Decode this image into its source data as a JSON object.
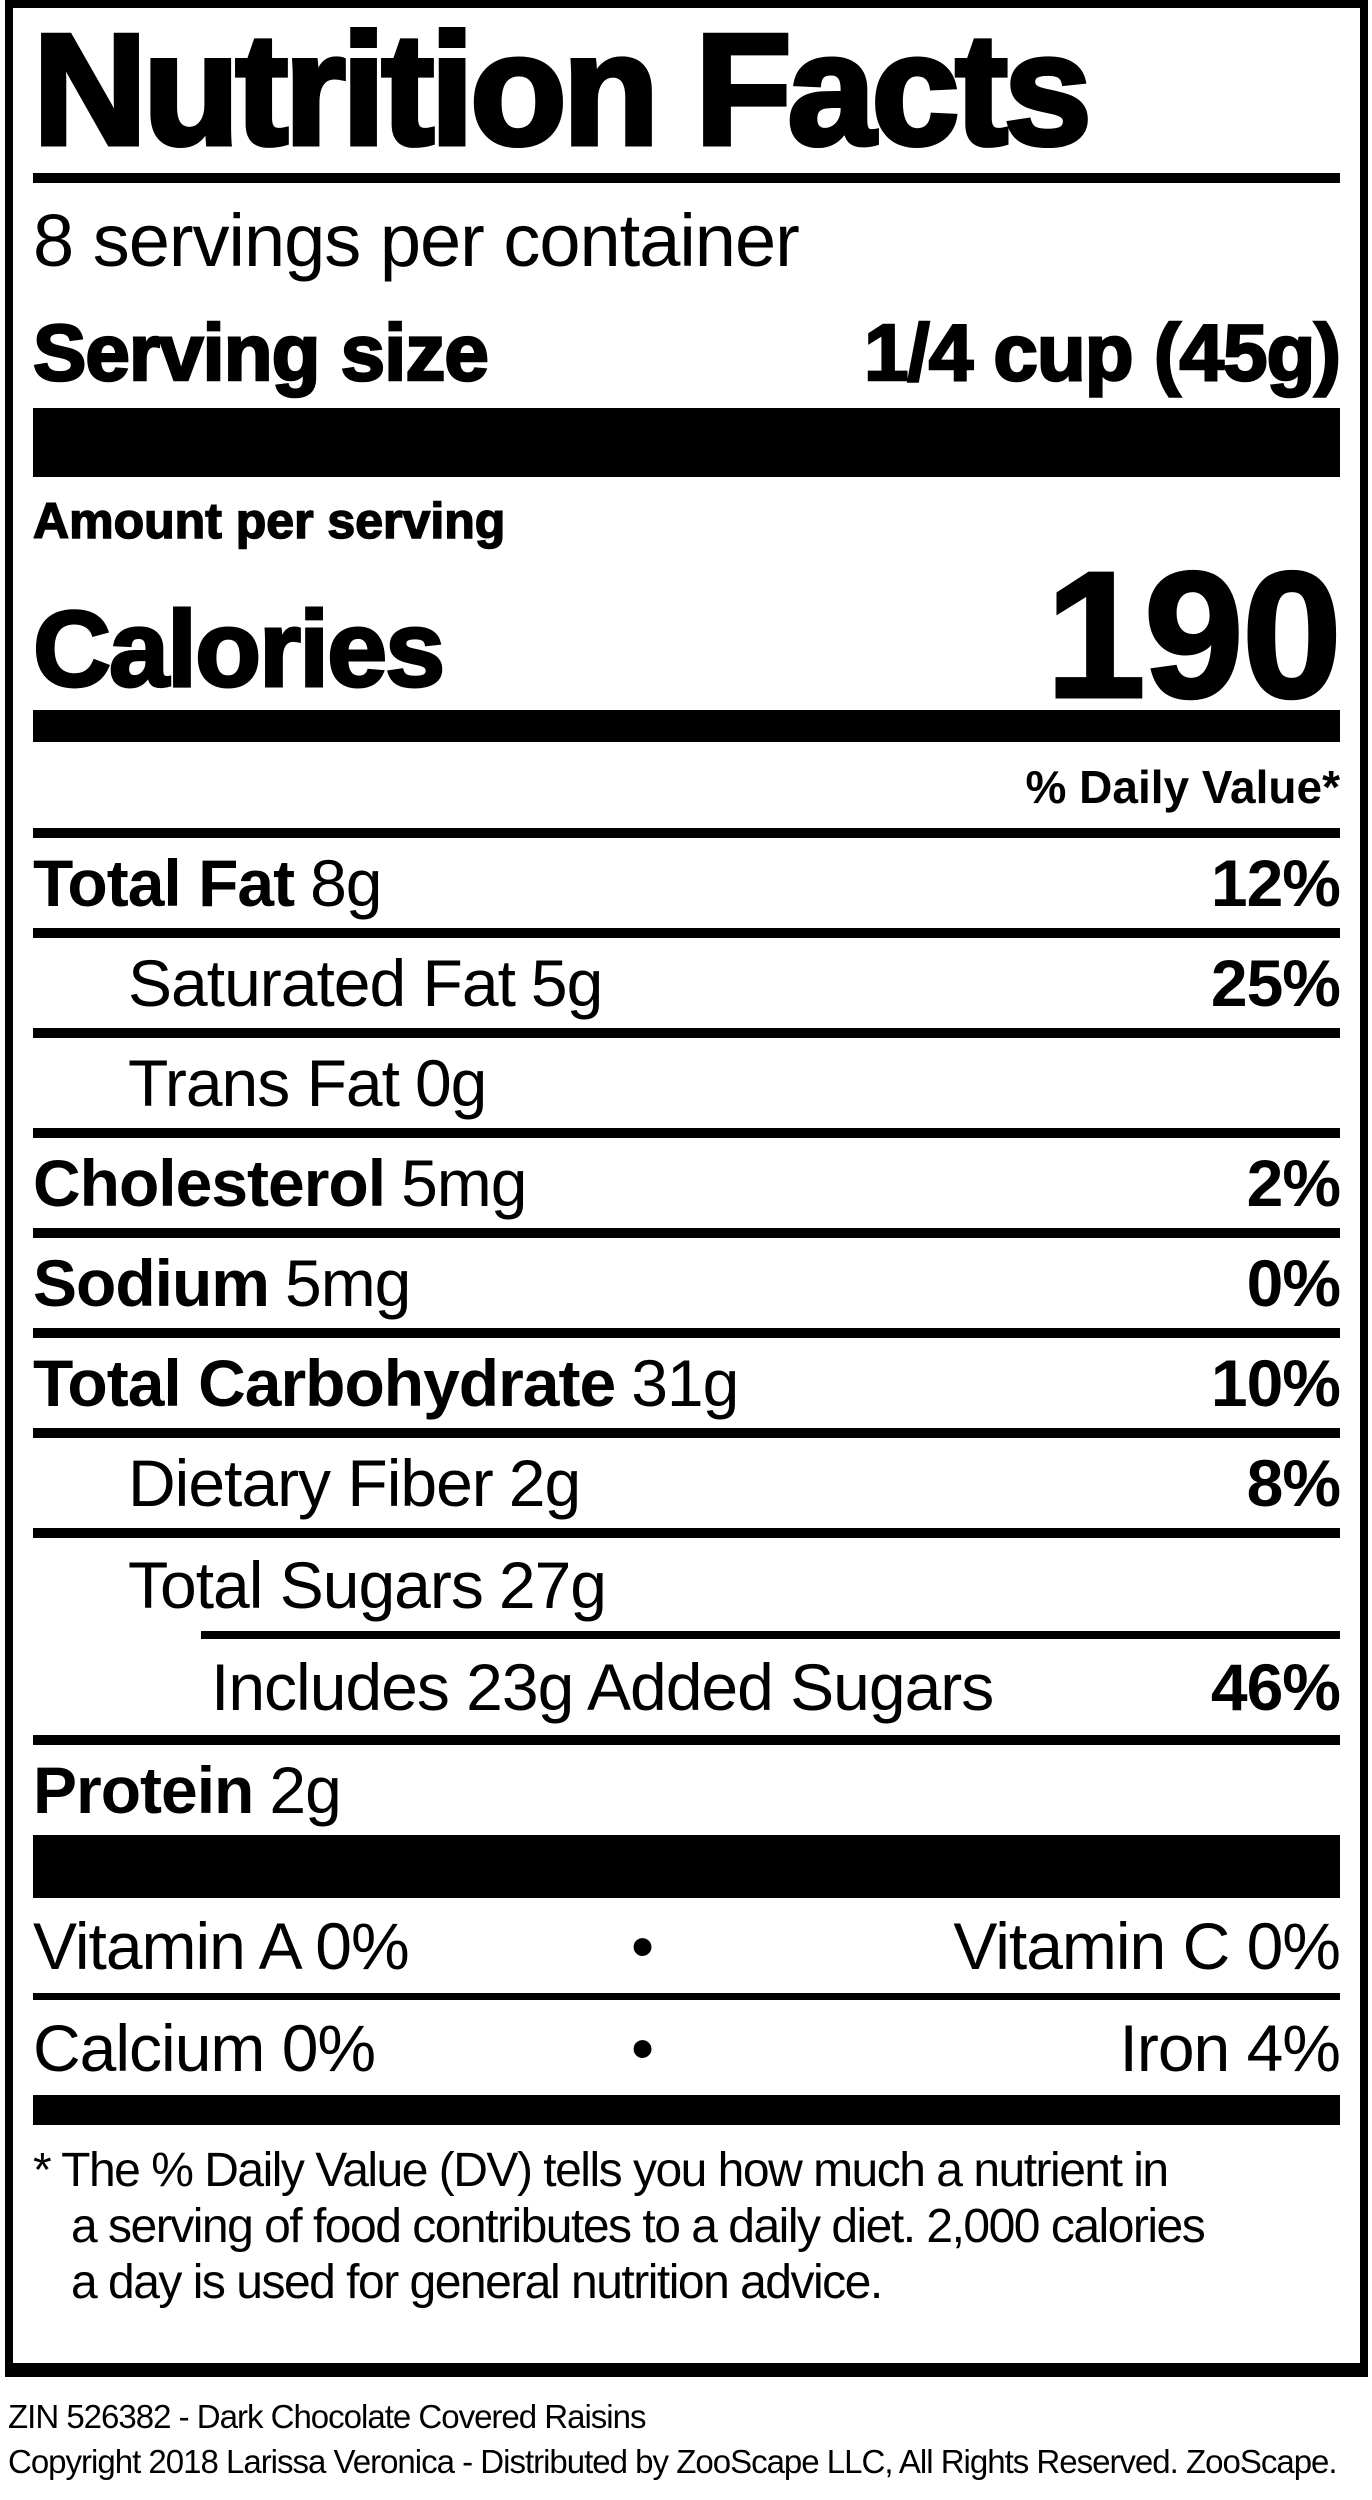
{
  "label": {
    "title": "Nutrition Facts",
    "servings_per_container": "8 servings per container",
    "serving_size_label": "Serving size",
    "serving_size_value": "1/4 cup (45g)",
    "amount_per_serving": "Amount per serving",
    "calories_label": "Calories",
    "calories_value": "190",
    "daily_value_header": "% Daily Value*",
    "rows": [
      {
        "name": "Total Fat",
        "amount": "8g",
        "dv": "12%"
      },
      {
        "name": "Saturated Fat",
        "amount": "5g",
        "dv": "25%"
      },
      {
        "name": "Trans Fat",
        "amount": "0g",
        "dv": ""
      },
      {
        "name": "Cholesterol",
        "amount": "5mg",
        "dv": "2%"
      },
      {
        "name": "Sodium",
        "amount": "5mg",
        "dv": "0%"
      },
      {
        "name": "Total Carbohydrate",
        "amount": "31g",
        "dv": "10%"
      },
      {
        "name": "Dietary Fiber",
        "amount": "2g",
        "dv": "8%"
      },
      {
        "name": "Total Sugars",
        "amount": "27g",
        "dv": ""
      },
      {
        "name": "Includes 23g Added Sugars",
        "amount": "",
        "dv": "46%"
      },
      {
        "name": "Protein",
        "amount": "2g",
        "dv": ""
      }
    ],
    "vitamins": [
      {
        "left": "Vitamin A 0%",
        "bullet": "•",
        "right": "Vitamin C 0%"
      },
      {
        "left": "Calcium 0%",
        "bullet": "•",
        "right": "Iron 4%"
      }
    ],
    "footnote_line1": "* The % Daily Value (DV) tells you how much a nutrient in",
    "footnote_line2": "a serving of food contributes to a daily diet. 2,000 calories",
    "footnote_line3": "a day is used for general nutrition advice."
  },
  "footer": {
    "zin_line": "ZIN 526382 - Dark Chocolate Covered Raisins",
    "copyright_line": "Copyright 2018 Larissa Veronica - Distributed by ZooScape LLC, All Rights Reserved. ZooScape."
  },
  "colors": {
    "ink": "#000000",
    "paper": "#ffffff"
  }
}
